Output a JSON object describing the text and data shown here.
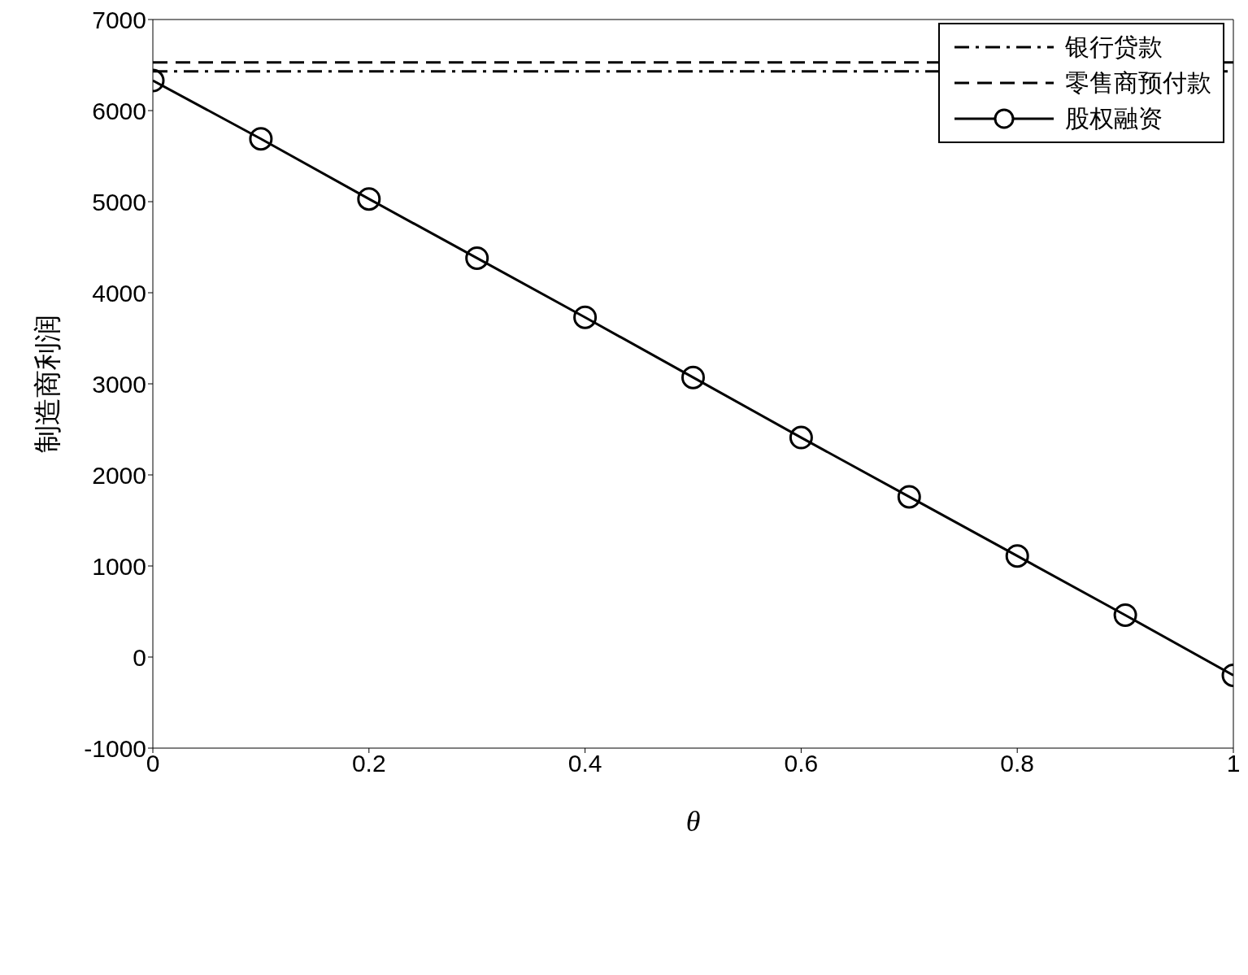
{
  "chart_data": {
    "type": "line",
    "xlabel": "θ",
    "ylabel": "制造商利润",
    "xlim": [
      0,
      1
    ],
    "xticks": [
      0,
      0.2,
      0.4,
      0.6,
      0.8,
      1
    ],
    "ylim": [
      -1000,
      7000
    ],
    "yticks": [
      -1000,
      0,
      1000,
      2000,
      3000,
      4000,
      5000,
      6000,
      7000
    ],
    "grid": false,
    "legend": "top right",
    "series": [
      {
        "name": "银行贷款",
        "color": "#000000",
        "x": [
          0,
          1
        ],
        "values": [
          6430,
          6430
        ],
        "marker": "none",
        "line_style": "dashdot"
      },
      {
        "name": "零售商预付款",
        "color": "#000000",
        "x": [
          0,
          1
        ],
        "values": [
          6530,
          6530
        ],
        "marker": "none",
        "line_style": "dashed"
      },
      {
        "name": "股权融资",
        "color": "#000000",
        "x": [
          0,
          0.1,
          0.2,
          0.3,
          0.4,
          0.5,
          0.6,
          0.7,
          0.8,
          0.9,
          1
        ],
        "values": [
          6330,
          5690,
          5030,
          4380,
          3730,
          3070,
          2410,
          1760,
          1110,
          460,
          -200
        ],
        "marker": "circle",
        "line_style": "solid"
      }
    ]
  }
}
